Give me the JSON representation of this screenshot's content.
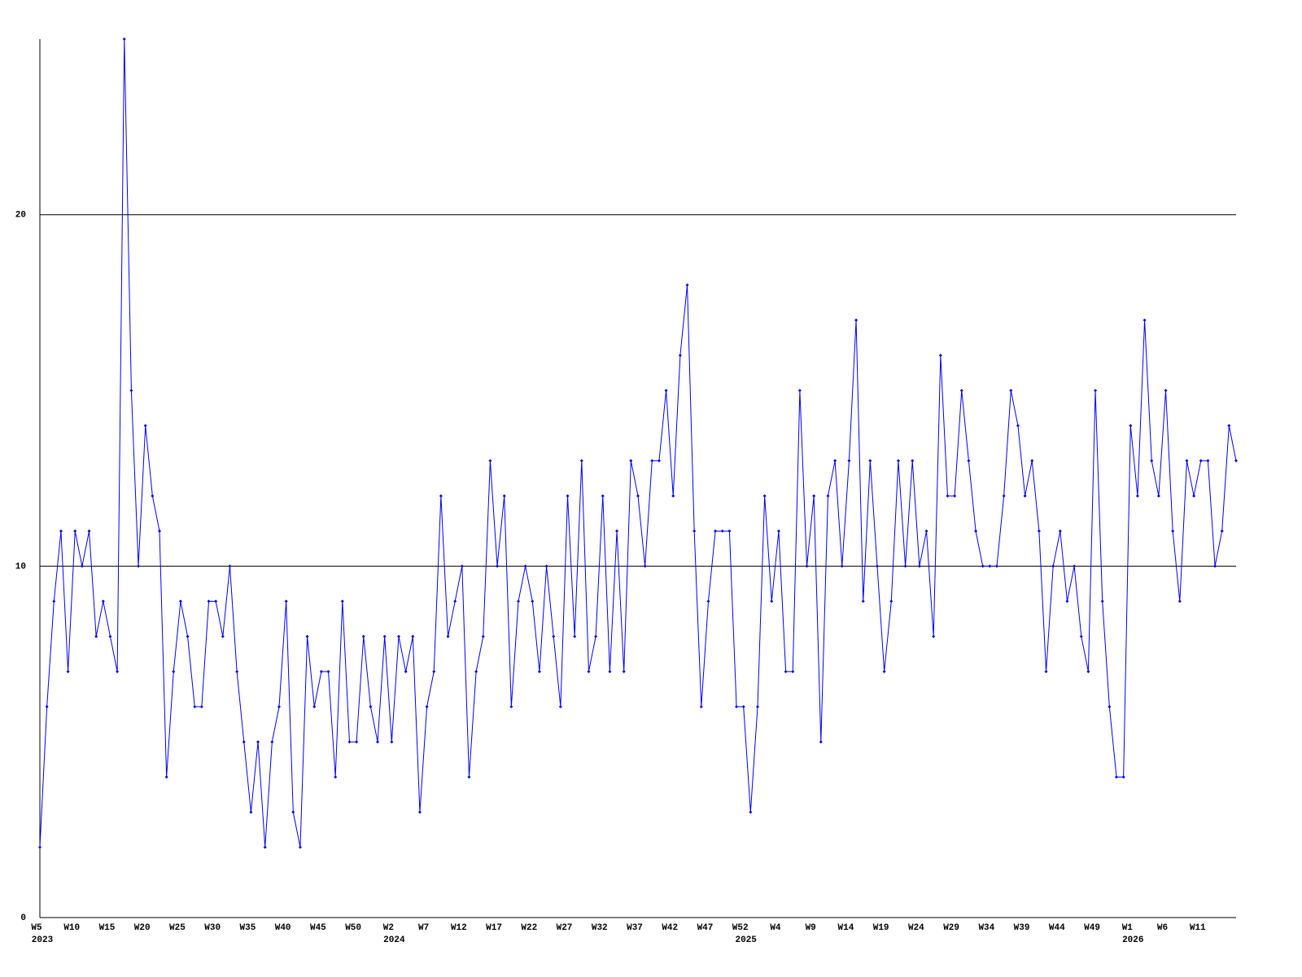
{
  "chart_data": {
    "type": "line",
    "ylim": [
      0,
      25
    ],
    "yticks": [
      0,
      10,
      20
    ],
    "grid": true,
    "categories": [
      "W5",
      null,
      null,
      null,
      null,
      "W10",
      null,
      null,
      null,
      null,
      "W15",
      null,
      null,
      null,
      null,
      "W20",
      null,
      null,
      null,
      null,
      "W25",
      null,
      null,
      null,
      null,
      "W30",
      null,
      null,
      null,
      null,
      "W35",
      null,
      null,
      null,
      null,
      "W40",
      null,
      null,
      null,
      null,
      "W45",
      null,
      null,
      null,
      null,
      "W50",
      null,
      null,
      null,
      null,
      "W2",
      null,
      null,
      null,
      null,
      "W7",
      null,
      null,
      null,
      null,
      "W12",
      null,
      null,
      null,
      null,
      "W17",
      null,
      null,
      null,
      null,
      "W22",
      null,
      null,
      null,
      null,
      "W27",
      null,
      null,
      null,
      null,
      "W32",
      null,
      null,
      null,
      null,
      "W37",
      null,
      null,
      null,
      null,
      "W42",
      null,
      null,
      null,
      null,
      "W47",
      null,
      null,
      null,
      null,
      "W52",
      null,
      null,
      null,
      null,
      "W4",
      null,
      null,
      null,
      null,
      "W9",
      null,
      null,
      null,
      null,
      "W14",
      null,
      null,
      null,
      null,
      "W19",
      null,
      null,
      null,
      null,
      "W24",
      null,
      null,
      null,
      null,
      "W29",
      null,
      null,
      null,
      null,
      "W34",
      null,
      null,
      null,
      null,
      "W39",
      null,
      null,
      null,
      null,
      "W44",
      null,
      null,
      null,
      null,
      "W49",
      null,
      null,
      null,
      null,
      "W1",
      null,
      null,
      null,
      null,
      "W6",
      null,
      null,
      null,
      null,
      "W11",
      null,
      null,
      null,
      null,
      null
    ],
    "category_years": [
      "2023",
      null,
      null,
      null,
      null,
      null,
      null,
      null,
      null,
      null,
      null,
      null,
      null,
      null,
      null,
      null,
      null,
      null,
      null,
      null,
      null,
      null,
      null,
      null,
      null,
      null,
      null,
      null,
      null,
      null,
      null,
      null,
      null,
      null,
      null,
      null,
      null,
      null,
      null,
      null,
      null,
      null,
      null,
      null,
      null,
      null,
      null,
      null,
      null,
      null,
      "2024",
      null,
      null,
      null,
      null,
      null,
      null,
      null,
      null,
      null,
      null,
      null,
      null,
      null,
      null,
      null,
      null,
      null,
      null,
      null,
      null,
      null,
      null,
      null,
      null,
      null,
      null,
      null,
      null,
      null,
      null,
      null,
      null,
      null,
      null,
      null,
      null,
      null,
      null,
      null,
      null,
      null,
      null,
      null,
      null,
      null,
      null,
      null,
      null,
      null,
      "2025",
      null,
      null,
      null,
      null,
      null,
      null,
      null,
      null,
      null,
      null,
      null,
      null,
      null,
      null,
      null,
      null,
      null,
      null,
      null,
      null,
      null,
      null,
      null,
      null,
      null,
      null,
      null,
      null,
      null,
      null,
      null,
      null,
      null,
      null,
      null,
      null,
      null,
      null,
      null,
      null,
      null,
      null,
      null,
      null,
      null,
      null,
      null,
      null,
      null,
      null,
      null,
      null,
      null,
      null,
      "2026",
      null,
      null,
      null,
      null,
      null,
      null,
      null,
      null,
      null,
      null,
      null,
      null,
      null,
      null,
      null
    ],
    "series": [
      {
        "color": "#0000ff",
        "values": [
          2,
          6,
          9,
          11,
          7,
          11,
          10,
          11,
          8,
          9,
          8,
          7,
          25,
          15,
          10,
          14,
          12,
          11,
          4,
          7,
          9,
          8,
          6,
          6,
          9,
          9,
          8,
          10,
          7,
          5,
          3,
          5,
          2,
          5,
          6,
          9,
          3,
          2,
          8,
          6,
          7,
          7,
          4,
          9,
          5,
          5,
          8,
          6,
          5,
          8,
          5,
          8,
          7,
          8,
          3,
          6,
          7,
          12,
          8,
          9,
          10,
          4,
          7,
          8,
          13,
          10,
          12,
          6,
          9,
          10,
          9,
          7,
          10,
          8,
          6,
          12,
          8,
          13,
          7,
          8,
          12,
          7,
          11,
          7,
          13,
          12,
          10,
          13,
          13,
          15,
          12,
          16,
          18,
          11,
          6,
          9,
          11,
          11,
          11,
          6,
          6,
          3,
          6,
          12,
          9,
          11,
          7,
          7,
          15,
          10,
          12,
          5,
          12,
          13,
          10,
          13,
          17,
          9,
          13,
          10,
          7,
          9,
          13,
          10,
          13,
          10,
          11,
          8,
          16,
          12,
          12,
          15,
          13,
          11,
          10,
          10,
          10,
          12,
          15,
          14,
          12,
          13,
          11,
          7,
          10,
          11,
          9,
          10,
          8,
          7,
          15,
          9,
          6,
          4,
          4,
          14,
          12,
          17,
          13,
          12,
          15,
          11,
          9,
          13,
          12,
          13,
          13,
          10,
          11,
          14,
          13
        ]
      }
    ]
  }
}
